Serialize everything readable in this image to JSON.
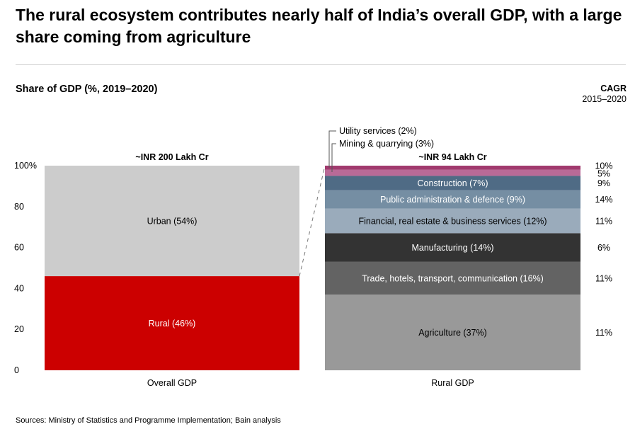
{
  "title": "The rural ecosystem contributes nearly half of India’s overall GDP, with a large share coming from agriculture",
  "source": "Sources: Ministry of Statistics and Programme Implementation; Bain analysis",
  "chart_data": {
    "type": "bar",
    "stacked": true,
    "title": "Share of GDP (%, 2019–2020)",
    "ylim": [
      0,
      100
    ],
    "yticks": [
      "0",
      "20",
      "40",
      "60",
      "80",
      "100%"
    ],
    "ytick_values": [
      0,
      20,
      40,
      60,
      80,
      100
    ],
    "grid": false,
    "cagr_header": "CAGR",
    "cagr_period": "2015–2020",
    "bars": [
      {
        "category": "Overall GDP",
        "total_label": "~INR 200 Lakh Cr",
        "segments": [
          {
            "label": "Rural (46%)",
            "value": 46,
            "color": "#cc0000",
            "text_color": "#ffffff"
          },
          {
            "label": "Urban (54%)",
            "value": 54,
            "color": "#cccccc",
            "text_color": "#000000"
          }
        ]
      },
      {
        "category": "Rural GDP",
        "total_label": "~INR 94 Lakh Cr",
        "segments": [
          {
            "label": "Agriculture (37%)",
            "value": 37,
            "color": "#999999",
            "text_color": "#000000",
            "cagr": "11%"
          },
          {
            "label": "Trade, hotels, transport, communication (16%)",
            "value": 16,
            "color": "#636363",
            "text_color": "#ffffff",
            "cagr": "11%"
          },
          {
            "label": "Manufacturing (14%)",
            "value": 14,
            "color": "#333333",
            "text_color": "#ffffff",
            "cagr": "6%"
          },
          {
            "label": "Financial, real estate & business services  (12%)",
            "value": 12,
            "color": "#9aabbb",
            "text_color": "#000000",
            "cagr": "11%"
          },
          {
            "label": "Public administration & defence  (9%)",
            "value": 9,
            "color": "#758ea3",
            "text_color": "#ffffff",
            "cagr": "14%"
          },
          {
            "label": "Construction (7%)",
            "value": 7,
            "color": "#4f6b85",
            "text_color": "#ffffff",
            "cagr": "9%"
          },
          {
            "label": "Mining & quarrying (3%)",
            "value": 3,
            "color": "#b96a97",
            "text_color": "#000000",
            "cagr": "5%",
            "callout": true
          },
          {
            "label": "Utility services (2%)",
            "value": 2,
            "color": "#a13a6e",
            "text_color": "#000000",
            "cagr": "10%",
            "callout": true
          }
        ]
      }
    ]
  }
}
